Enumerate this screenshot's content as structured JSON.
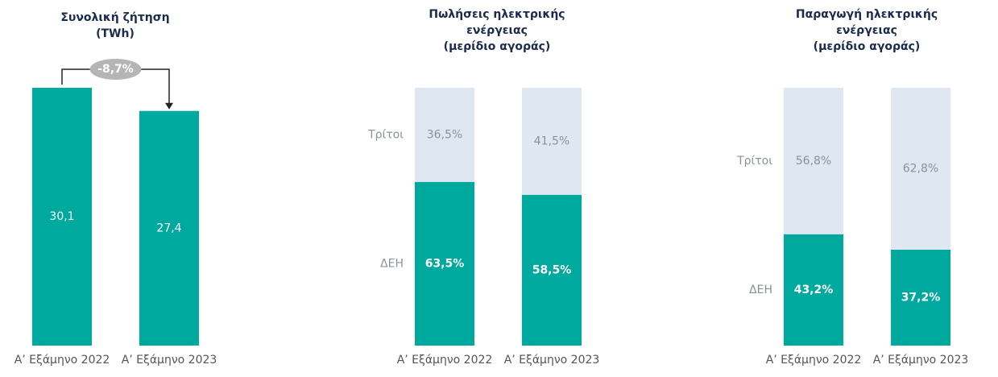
{
  "chart_data": [
    {
      "type": "bar",
      "title": [
        "Συνολική ζήτηση",
        "(TWh)"
      ],
      "categories": [
        "Α’ Εξάμηνο 2022",
        "Α’ Εξάμηνο 2023"
      ],
      "values": [
        30.1,
        27.4
      ],
      "value_labels": [
        "30,1",
        "27,4"
      ],
      "color": "#00a99d",
      "annotation": "-8,7%"
    },
    {
      "type": "bar",
      "stacked": true,
      "title": [
        "Πωλήσεις ηλεκτρικής",
        "ενέργειας",
        "(μερίδιο αγοράς)"
      ],
      "categories": [
        "Α’ Εξάμηνο 2022",
        "Α’ Εξάμηνο 2023"
      ],
      "series": [
        {
          "name": "ΔΕΗ",
          "color": "#00a99d",
          "values": [
            63.5,
            58.5
          ],
          "value_labels": [
            "63,5%",
            "58,5%"
          ]
        },
        {
          "name": "Τρίτοι",
          "color": "#dfe7f1",
          "values": [
            36.5,
            41.5
          ],
          "value_labels": [
            "36,5%",
            "41,5%"
          ]
        }
      ]
    },
    {
      "type": "bar",
      "stacked": true,
      "title": [
        "Παραγωγή ηλεκτρικής",
        "ενέργειας",
        "(μερίδιο αγοράς)"
      ],
      "categories": [
        "Α’ Εξάμηνο 2022",
        "Α’ Εξάμηνο 2023"
      ],
      "series": [
        {
          "name": "ΔΕΗ",
          "color": "#00a99d",
          "values": [
            43.2,
            37.2
          ],
          "value_labels": [
            "43,2%",
            "37,2%"
          ]
        },
        {
          "name": "Τρίτοι",
          "color": "#dfe7f1",
          "values": [
            56.8,
            62.8
          ],
          "value_labels": [
            "56,8%",
            "62,8%"
          ]
        }
      ]
    }
  ]
}
